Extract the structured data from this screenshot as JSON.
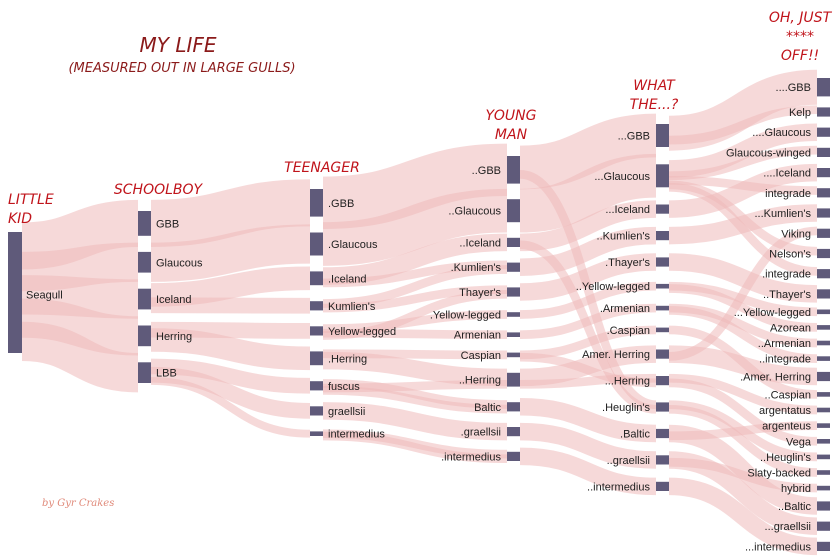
{
  "title": "MY LIFE",
  "subtitle": "(MEASURED OUT IN LARGE GULLS)",
  "credit": "by Gyr Crakes",
  "colors": {
    "node": "#5f5a7a",
    "link": "#efb9ba",
    "title": "#8b1a1a",
    "stage": "#c0141b",
    "credit": "#e08a7a"
  },
  "stages": [
    {
      "lines": [
        "LITTLE",
        "KID"
      ]
    },
    {
      "lines": [
        "SCHOOLBOY"
      ]
    },
    {
      "lines": [
        "TEENAGER"
      ]
    },
    {
      "lines": [
        "YOUNG",
        "MAN"
      ]
    },
    {
      "lines": [
        "WHAT",
        "THE...?"
      ]
    },
    {
      "lines": [
        "OH, JUST",
        "****",
        "OFF!!"
      ]
    }
  ],
  "columns": [
    {
      "nodes": [
        {
          "label": "Seagull",
          "value": 26
        }
      ]
    },
    {
      "nodes": [
        {
          "label": "GBB",
          "value": 6
        },
        {
          "label": "Glaucous",
          "value": 5
        },
        {
          "label": "Iceland",
          "value": 5
        },
        {
          "label": "Herring",
          "value": 5
        },
        {
          "label": "LBB",
          "value": 5
        }
      ]
    },
    {
      "nodes": [
        {
          "label": ".GBB",
          "value": 6
        },
        {
          "label": ".Glaucous",
          "value": 5
        },
        {
          "label": ".Iceland",
          "value": 3
        },
        {
          "label": "Kumlien's",
          "value": 2
        },
        {
          "label": "Yellow-legged",
          "value": 2
        },
        {
          "label": ".Herring",
          "value": 3
        },
        {
          "label": "fuscus",
          "value": 2
        },
        {
          "label": "graellsii",
          "value": 2
        },
        {
          "label": "intermedius",
          "value": 1
        }
      ]
    },
    {
      "nodes": [
        {
          "label": "..GBB",
          "value": 6
        },
        {
          "label": "..Glaucous",
          "value": 5
        },
        {
          "label": "..Iceland",
          "value": 2
        },
        {
          "label": ".Kumlien's",
          "value": 2
        },
        {
          "label": "Thayer's",
          "value": 2
        },
        {
          "label": ".Yellow-legged",
          "value": 1
        },
        {
          "label": "Armenian",
          "value": 1
        },
        {
          "label": "Caspian",
          "value": 1
        },
        {
          "label": "..Herring",
          "value": 3
        },
        {
          "label": "Baltic",
          "value": 2
        },
        {
          "label": ".graellsii",
          "value": 2
        },
        {
          "label": ".intermedius",
          "value": 2
        }
      ]
    },
    {
      "nodes": [
        {
          "label": "...GBB",
          "value": 5
        },
        {
          "label": "...Glaucous",
          "value": 5
        },
        {
          "label": "...Iceland",
          "value": 2
        },
        {
          "label": "..Kumlien's",
          "value": 2
        },
        {
          "label": ".Thayer's",
          "value": 2
        },
        {
          "label": "..Yellow-legged",
          "value": 1
        },
        {
          "label": ".Armenian",
          "value": 1
        },
        {
          "label": ".Caspian",
          "value": 1
        },
        {
          "label": "Amer. Herring",
          "value": 2
        },
        {
          "label": "...Herring",
          "value": 2
        },
        {
          "label": ".Heuglin's",
          "value": 2
        },
        {
          "label": ".Baltic",
          "value": 2
        },
        {
          "label": "..graellsii",
          "value": 2
        },
        {
          "label": "..intermedius",
          "value": 2
        }
      ]
    },
    {
      "nodes": [
        {
          "label": "....GBB",
          "value": 4
        },
        {
          "label": "Kelp",
          "value": 2
        },
        {
          "label": "....Glaucous",
          "value": 2
        },
        {
          "label": "Glaucous-winged",
          "value": 2
        },
        {
          "label": "....Iceland",
          "value": 2
        },
        {
          "label": "integrade",
          "value": 2
        },
        {
          "label": "...Kumlien's",
          "value": 2
        },
        {
          "label": "Viking",
          "value": 2
        },
        {
          "label": "Nelson's",
          "value": 2
        },
        {
          "label": ".integrade",
          "value": 2
        },
        {
          "label": "..Thayer's",
          "value": 2
        },
        {
          "label": "...Yellow-legged",
          "value": 1
        },
        {
          "label": "Azorean",
          "value": 1
        },
        {
          "label": "..Armenian",
          "value": 1
        },
        {
          "label": "..integrade",
          "value": 1
        },
        {
          "label": ".Amer. Herring",
          "value": 2
        },
        {
          "label": "..Caspian",
          "value": 1
        },
        {
          "label": "argentatus",
          "value": 1
        },
        {
          "label": "argenteus",
          "value": 1
        },
        {
          "label": "Vega",
          "value": 1
        },
        {
          "label": "..Heuglin's",
          "value": 1
        },
        {
          "label": "Slaty-backed",
          "value": 1
        },
        {
          "label": "hybrid",
          "value": 1
        },
        {
          "label": "..Baltic",
          "value": 2
        },
        {
          "label": "...graellsii",
          "value": 2
        },
        {
          "label": "...intermedius",
          "value": 2
        }
      ]
    }
  ],
  "links": [
    {
      "from": [
        0,
        0
      ],
      "to": [
        1,
        0
      ],
      "value": 6
    },
    {
      "from": [
        0,
        0
      ],
      "to": [
        1,
        1
      ],
      "value": 5
    },
    {
      "from": [
        0,
        0
      ],
      "to": [
        1,
        2
      ],
      "value": 5
    },
    {
      "from": [
        0,
        0
      ],
      "to": [
        1,
        3
      ],
      "value": 5
    },
    {
      "from": [
        0,
        0
      ],
      "to": [
        1,
        4
      ],
      "value": 5
    },
    {
      "from": [
        1,
        0
      ],
      "to": [
        2,
        0
      ],
      "value": 6
    },
    {
      "from": [
        1,
        1
      ],
      "to": [
        2,
        1
      ],
      "value": 5
    },
    {
      "from": [
        1,
        2
      ],
      "to": [
        2,
        2
      ],
      "value": 3
    },
    {
      "from": [
        1,
        2
      ],
      "to": [
        2,
        3
      ],
      "value": 2
    },
    {
      "from": [
        1,
        3
      ],
      "to": [
        2,
        4
      ],
      "value": 2
    },
    {
      "from": [
        1,
        3
      ],
      "to": [
        2,
        5
      ],
      "value": 3
    },
    {
      "from": [
        1,
        4
      ],
      "to": [
        2,
        6
      ],
      "value": 2
    },
    {
      "from": [
        1,
        4
      ],
      "to": [
        2,
        7
      ],
      "value": 2
    },
    {
      "from": [
        1,
        4
      ],
      "to": [
        2,
        8
      ],
      "value": 1
    },
    {
      "from": [
        2,
        0
      ],
      "to": [
        3,
        0
      ],
      "value": 6
    },
    {
      "from": [
        2,
        1
      ],
      "to": [
        3,
        1
      ],
      "value": 5
    },
    {
      "from": [
        2,
        2
      ],
      "to": [
        3,
        2
      ],
      "value": 2
    },
    {
      "from": [
        2,
        2
      ],
      "to": [
        3,
        3
      ],
      "value": 1
    },
    {
      "from": [
        2,
        3
      ],
      "to": [
        3,
        3
      ],
      "value": 1
    },
    {
      "from": [
        2,
        3
      ],
      "to": [
        3,
        4
      ],
      "value": 1
    },
    {
      "from": [
        2,
        4
      ],
      "to": [
        3,
        5
      ],
      "value": 1
    },
    {
      "from": [
        2,
        4
      ],
      "to": [
        3,
        6
      ],
      "value": 1
    },
    {
      "from": [
        2,
        5
      ],
      "to": [
        3,
        7
      ],
      "value": 1
    },
    {
      "from": [
        2,
        5
      ],
      "to": [
        3,
        8
      ],
      "value": 2
    },
    {
      "from": [
        2,
        6
      ],
      "to": [
        3,
        9
      ],
      "value": 1
    },
    {
      "from": [
        2,
        6
      ],
      "to": [
        3,
        8
      ],
      "value": 1
    },
    {
      "from": [
        2,
        7
      ],
      "to": [
        3,
        10
      ],
      "value": 2
    },
    {
      "from": [
        2,
        8
      ],
      "to": [
        3,
        11
      ],
      "value": 1
    },
    {
      "from": [
        2,
        4
      ],
      "to": [
        3,
        4
      ],
      "value": 1
    },
    {
      "from": [
        2,
        6
      ],
      "to": [
        3,
        9
      ],
      "value": 1
    },
    {
      "from": [
        2,
        8
      ],
      "to": [
        3,
        11
      ],
      "value": 1
    },
    {
      "from": [
        3,
        0
      ],
      "to": [
        4,
        0
      ],
      "value": 5
    },
    {
      "from": [
        3,
        1
      ],
      "to": [
        4,
        1
      ],
      "value": 5
    },
    {
      "from": [
        3,
        2
      ],
      "to": [
        4,
        2
      ],
      "value": 2
    },
    {
      "from": [
        3,
        3
      ],
      "to": [
        4,
        3
      ],
      "value": 2
    },
    {
      "from": [
        3,
        4
      ],
      "to": [
        4,
        4
      ],
      "value": 2
    },
    {
      "from": [
        3,
        5
      ],
      "to": [
        4,
        5
      ],
      "value": 1
    },
    {
      "from": [
        3,
        6
      ],
      "to": [
        4,
        6
      ],
      "value": 1
    },
    {
      "from": [
        3,
        7
      ],
      "to": [
        4,
        7
      ],
      "value": 1
    },
    {
      "from": [
        3,
        8
      ],
      "to": [
        4,
        8
      ],
      "value": 2
    },
    {
      "from": [
        3,
        8
      ],
      "to": [
        4,
        9
      ],
      "value": 1
    },
    {
      "from": [
        3,
        9
      ],
      "to": [
        4,
        11
      ],
      "value": 2
    },
    {
      "from": [
        3,
        10
      ],
      "to": [
        4,
        12
      ],
      "value": 2
    },
    {
      "from": [
        3,
        11
      ],
      "to": [
        4,
        13
      ],
      "value": 2
    },
    {
      "from": [
        3,
        0
      ],
      "to": [
        4,
        10
      ],
      "value": 1
    },
    {
      "from": [
        3,
        2
      ],
      "to": [
        4,
        10
      ],
      "value": 1
    },
    {
      "from": [
        3,
        7
      ],
      "to": [
        4,
        9
      ],
      "value": 1
    },
    {
      "from": [
        4,
        0
      ],
      "to": [
        5,
        0
      ],
      "value": 4
    },
    {
      "from": [
        4,
        0
      ],
      "to": [
        5,
        1
      ],
      "value": 1
    },
    {
      "from": [
        4,
        1
      ],
      "to": [
        5,
        2
      ],
      "value": 2
    },
    {
      "from": [
        4,
        1
      ],
      "to": [
        5,
        3
      ],
      "value": 1
    },
    {
      "from": [
        4,
        1
      ],
      "to": [
        5,
        5
      ],
      "value": 1
    },
    {
      "from": [
        4,
        1
      ],
      "to": [
        5,
        8
      ],
      "value": 1
    },
    {
      "from": [
        4,
        1
      ],
      "to": [
        5,
        9
      ],
      "value": 1
    },
    {
      "from": [
        4,
        2
      ],
      "to": [
        5,
        4
      ],
      "value": 2
    },
    {
      "from": [
        4,
        3
      ],
      "to": [
        5,
        6
      ],
      "value": 2
    },
    {
      "from": [
        4,
        4
      ],
      "to": [
        5,
        10
      ],
      "value": 2
    },
    {
      "from": [
        4,
        5
      ],
      "to": [
        5,
        11
      ],
      "value": 1
    },
    {
      "from": [
        4,
        6
      ],
      "to": [
        5,
        13
      ],
      "value": 1
    },
    {
      "from": [
        4,
        7
      ],
      "to": [
        5,
        16
      ],
      "value": 1
    },
    {
      "from": [
        4,
        8
      ],
      "to": [
        5,
        15
      ],
      "value": 2
    },
    {
      "from": [
        4,
        8
      ],
      "to": [
        5,
        7
      ],
      "value": 1
    },
    {
      "from": [
        4,
        9
      ],
      "to": [
        5,
        17
      ],
      "value": 1
    },
    {
      "from": [
        4,
        9
      ],
      "to": [
        5,
        19
      ],
      "value": 1
    },
    {
      "from": [
        4,
        10
      ],
      "to": [
        5,
        20
      ],
      "value": 1
    },
    {
      "from": [
        4,
        10
      ],
      "to": [
        5,
        21
      ],
      "value": 1
    },
    {
      "from": [
        4,
        11
      ],
      "to": [
        5,
        23
      ],
      "value": 2
    },
    {
      "from": [
        4,
        12
      ],
      "to": [
        5,
        24
      ],
      "value": 2
    },
    {
      "from": [
        4,
        13
      ],
      "to": [
        5,
        25
      ],
      "value": 2
    },
    {
      "from": [
        4,
        11
      ],
      "to": [
        5,
        18
      ],
      "value": 1
    },
    {
      "from": [
        4,
        12
      ],
      "to": [
        5,
        22
      ],
      "value": 1
    },
    {
      "from": [
        4,
        5
      ],
      "to": [
        5,
        12
      ],
      "value": 1
    },
    {
      "from": [
        4,
        6
      ],
      "to": [
        5,
        14
      ],
      "value": 1
    }
  ]
}
